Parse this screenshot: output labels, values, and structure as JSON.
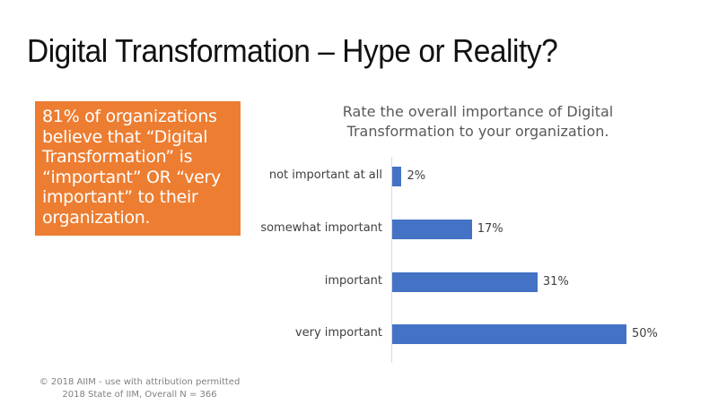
{
  "slide": {
    "title": "Digital Transformation – Hype or Reality?",
    "callout": {
      "text": "81% of organizations believe that “Digital Transformation” is “important” OR “very important” to their organization.",
      "background": "#ed7d31"
    },
    "footer": {
      "line1": "© 2018 AIIM - use with attribution permitted",
      "line2": "2018 State of IIM, Overall N = 366"
    }
  },
  "chart_data": {
    "type": "bar",
    "orientation": "horizontal",
    "title": "Rate the overall importance of Digital Transformation to your organization.",
    "categories": [
      "not important at all",
      "somewhat important",
      "important",
      "very important"
    ],
    "values": [
      2,
      17,
      31,
      50
    ],
    "value_labels": [
      "2%",
      "17%",
      "31%",
      "50%"
    ],
    "unit": "%",
    "xlabel": "",
    "ylabel": "",
    "xlim": [
      0,
      50
    ],
    "grid": false,
    "legend": null,
    "bar_color": "#4472c4"
  }
}
